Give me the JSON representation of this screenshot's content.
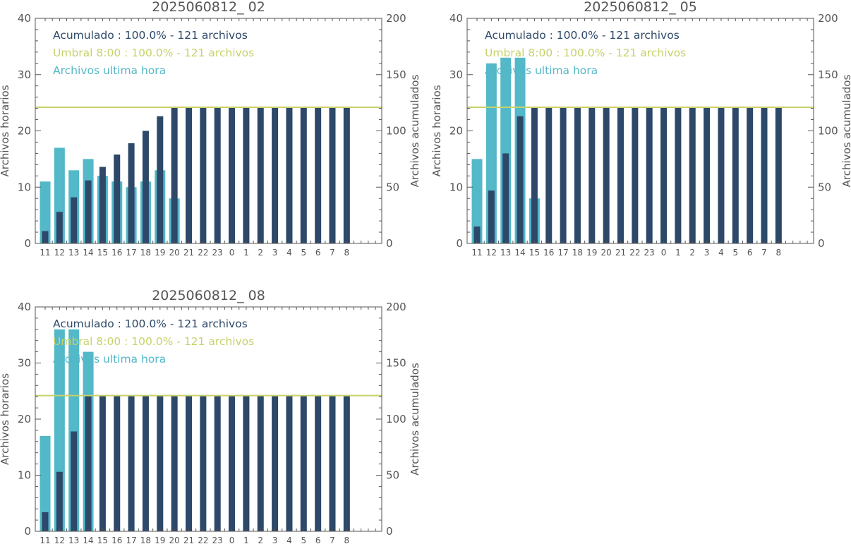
{
  "colors": {
    "hourly": "#53b8c8",
    "cumulative": "#2d4868",
    "threshold": "#c8d26a",
    "axis": "#555555",
    "background": "#ffffff"
  },
  "chart_data": [
    {
      "type": "bar",
      "title": "2025060812_ 02",
      "ylabel": "Archivos horarios",
      "y2label": "Archivos acumulados",
      "ylim": [
        0,
        40
      ],
      "y2lim": [
        0,
        200
      ],
      "yticks": [
        "0",
        "10",
        "20",
        "30",
        "40"
      ],
      "y2ticks": [
        "0",
        "50",
        "100",
        "150",
        "200"
      ],
      "categories": [
        "11",
        "12",
        "13",
        "14",
        "15",
        "16",
        "17",
        "18",
        "19",
        "20",
        "21",
        "22",
        "23",
        "0",
        "1",
        "2",
        "3",
        "4",
        "5",
        "6",
        "7",
        "8"
      ],
      "threshold": 121,
      "legend": [
        {
          "text": "Acumulado : 100.0% - 121 archivos",
          "series": "cumulative"
        },
        {
          "text": "Umbral 8:00 : 100.0% - 121 archivos",
          "series": "threshold"
        },
        {
          "text": "Archivos ultima hora",
          "series": "hourly"
        }
      ],
      "series": [
        {
          "key": "hourly",
          "axis": "left",
          "values": [
            11,
            17,
            13,
            15,
            12,
            11,
            10,
            11,
            13,
            8,
            null,
            null,
            null,
            null,
            null,
            null,
            null,
            null,
            null,
            null,
            null,
            null
          ]
        },
        {
          "key": "cumulative",
          "axis": "right",
          "values": [
            11,
            28,
            41,
            56,
            68,
            79,
            89,
            100,
            113,
            121,
            121,
            121,
            121,
            121,
            121,
            121,
            121,
            121,
            121,
            121,
            121,
            121
          ]
        }
      ]
    },
    {
      "type": "bar",
      "title": "2025060812_ 05",
      "ylabel": "Archivos horarios",
      "y2label": "Archivos acumulados",
      "ylim": [
        0,
        40
      ],
      "y2lim": [
        0,
        200
      ],
      "yticks": [
        "0",
        "10",
        "20",
        "30",
        "40"
      ],
      "y2ticks": [
        "0",
        "50",
        "100",
        "150",
        "200"
      ],
      "categories": [
        "11",
        "12",
        "13",
        "14",
        "15",
        "16",
        "17",
        "18",
        "19",
        "20",
        "21",
        "22",
        "23",
        "0",
        "1",
        "2",
        "3",
        "4",
        "5",
        "6",
        "7",
        "8"
      ],
      "threshold": 121,
      "legend": [
        {
          "text": "Acumulado : 100.0% - 121 archivos",
          "series": "cumulative"
        },
        {
          "text": "Umbral 8:00 : 100.0% - 121 archivos",
          "series": "threshold"
        },
        {
          "text": "Archivos ultima hora",
          "series": "hourly"
        }
      ],
      "series": [
        {
          "key": "hourly",
          "axis": "left",
          "values": [
            15,
            32,
            33,
            33,
            8,
            null,
            null,
            null,
            null,
            null,
            null,
            null,
            null,
            null,
            null,
            null,
            null,
            null,
            null,
            null,
            null,
            null
          ]
        },
        {
          "key": "cumulative",
          "axis": "right",
          "values": [
            15,
            47,
            80,
            113,
            121,
            121,
            121,
            121,
            121,
            121,
            121,
            121,
            121,
            121,
            121,
            121,
            121,
            121,
            121,
            121,
            121,
            121
          ]
        }
      ]
    },
    {
      "type": "bar",
      "title": "2025060812_ 08",
      "ylabel": "Archivos horarios",
      "y2label": "Archivos acumulados",
      "ylim": [
        0,
        40
      ],
      "y2lim": [
        0,
        200
      ],
      "yticks": [
        "0",
        "10",
        "20",
        "30",
        "40"
      ],
      "y2ticks": [
        "0",
        "50",
        "100",
        "150",
        "200"
      ],
      "categories": [
        "11",
        "12",
        "13",
        "14",
        "15",
        "16",
        "17",
        "18",
        "19",
        "20",
        "21",
        "22",
        "23",
        "0",
        "1",
        "2",
        "3",
        "4",
        "5",
        "6",
        "7",
        "8"
      ],
      "threshold": 121,
      "legend": [
        {
          "text": "Acumulado : 100.0% - 121 archivos",
          "series": "cumulative"
        },
        {
          "text": "Umbral 8:00 : 100.0% - 121 archivos",
          "series": "threshold"
        },
        {
          "text": "Archivos ultima hora",
          "series": "hourly"
        }
      ],
      "series": [
        {
          "key": "hourly",
          "axis": "left",
          "values": [
            17,
            36,
            36,
            32,
            null,
            null,
            null,
            null,
            null,
            null,
            null,
            null,
            null,
            null,
            null,
            null,
            null,
            null,
            null,
            null,
            null,
            null
          ]
        },
        {
          "key": "cumulative",
          "axis": "right",
          "values": [
            17,
            53,
            89,
            121,
            121,
            121,
            121,
            121,
            121,
            121,
            121,
            121,
            121,
            121,
            121,
            121,
            121,
            121,
            121,
            121,
            121,
            121
          ]
        }
      ]
    }
  ]
}
